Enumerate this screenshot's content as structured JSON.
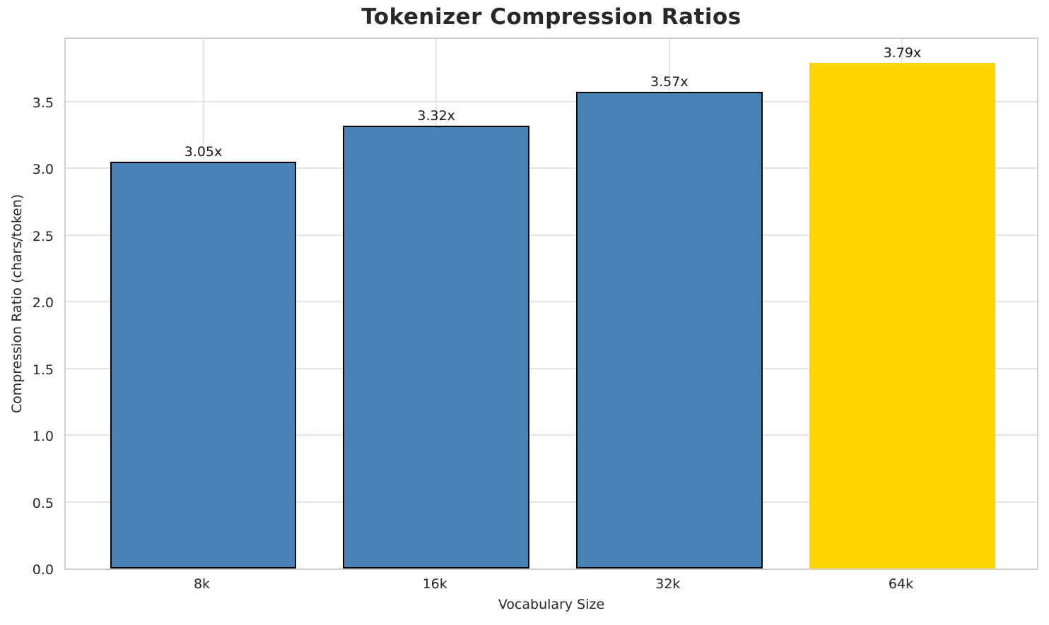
{
  "chart_data": {
    "type": "bar",
    "title": "Tokenizer Compression Ratios",
    "xlabel": "Vocabulary Size",
    "ylabel": "Compression Ratio (chars/token)",
    "categories": [
      "8k",
      "16k",
      "32k",
      "64k"
    ],
    "values": [
      3.05,
      3.32,
      3.57,
      3.79
    ],
    "value_labels": [
      "3.05x",
      "3.32x",
      "3.57x",
      "3.79x"
    ],
    "bar_colors": [
      "#4682B4",
      "#4682B4",
      "#4682B4",
      "#FFD700"
    ],
    "bar_edge_widths": [
      2,
      2,
      2,
      0
    ],
    "highlight_index": 3,
    "ylim": [
      0,
      3.99
    ],
    "yticks": [
      0.0,
      0.5,
      1.0,
      1.5,
      2.0,
      2.5,
      3.0,
      3.5
    ],
    "ytick_labels": [
      "0.0",
      "0.5",
      "1.0",
      "1.5",
      "2.0",
      "2.5",
      "3.0",
      "3.5"
    ],
    "grid": true,
    "grid_axes": "both",
    "legend": "none"
  },
  "colors": {
    "bar_blue": "#4682B4",
    "bar_highlight_gold": "#FFD700",
    "bar_edge": "#000000",
    "grid": "#e5e5e5",
    "spine": "#d2d2d2",
    "text": "#262626",
    "title_text": "#282828",
    "background": "#FFFFFF"
  }
}
